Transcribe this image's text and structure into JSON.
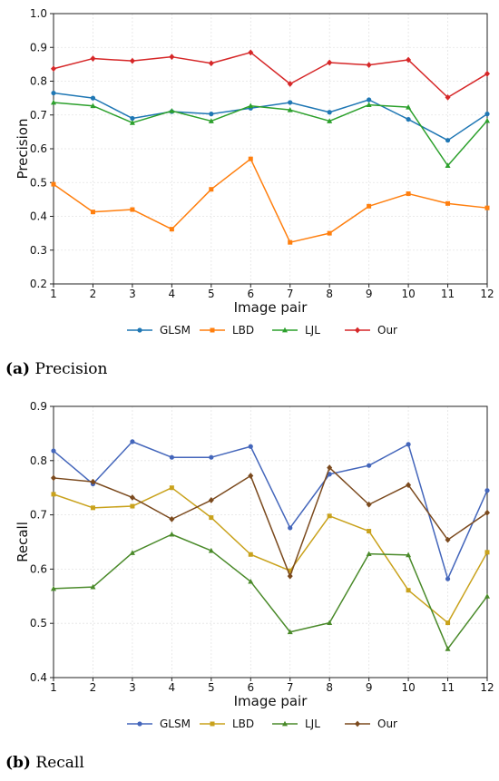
{
  "chart_data": [
    {
      "type": "line",
      "panel": "a",
      "caption_letter": "(a)",
      "caption_text": " Precision",
      "xlabel": "Image pair",
      "ylabel": "Precision",
      "x": [
        1,
        2,
        3,
        4,
        5,
        6,
        7,
        8,
        9,
        10,
        11,
        12
      ],
      "xlim": [
        1,
        12
      ],
      "ylim": [
        0.2,
        1.0
      ],
      "yticks": [
        0.2,
        0.3,
        0.4,
        0.5,
        0.6,
        0.7,
        0.8,
        0.9,
        1.0
      ],
      "ytick_labels": [
        "0.2",
        "0.3",
        "0.4",
        "0.5",
        "0.6",
        "0.7",
        "0.8",
        "0.9",
        "1.0"
      ],
      "grid": true,
      "legend_placement": "bottom-center",
      "series": [
        {
          "name": "GLSM",
          "color": "#1f77b4",
          "marker": "circle",
          "values": [
            0.765,
            0.75,
            0.69,
            0.71,
            0.703,
            0.72,
            0.737,
            0.708,
            0.745,
            0.687,
            0.625,
            0.703
          ]
        },
        {
          "name": "LBD",
          "color": "#ff7f0e",
          "marker": "square",
          "values": [
            0.495,
            0.413,
            0.42,
            0.362,
            0.48,
            0.57,
            0.323,
            0.35,
            0.43,
            0.467,
            0.438,
            0.425
          ]
        },
        {
          "name": "LJL",
          "color": "#2ca02c",
          "marker": "triangle",
          "values": [
            0.737,
            0.727,
            0.677,
            0.712,
            0.682,
            0.727,
            0.715,
            0.682,
            0.73,
            0.723,
            0.55,
            0.683
          ]
        },
        {
          "name": "Our",
          "color": "#d62728",
          "marker": "diamond",
          "values": [
            0.837,
            0.867,
            0.86,
            0.872,
            0.853,
            0.885,
            0.792,
            0.855,
            0.848,
            0.863,
            0.752,
            0.822
          ]
        }
      ]
    },
    {
      "type": "line",
      "panel": "b",
      "caption_letter": "(b)",
      "caption_text": " Recall",
      "xlabel": "Image pair",
      "ylabel": "Recall",
      "x": [
        1,
        2,
        3,
        4,
        5,
        6,
        7,
        8,
        9,
        10,
        11,
        12
      ],
      "xlim": [
        1,
        12
      ],
      "ylim": [
        0.4,
        0.9
      ],
      "yticks": [
        0.4,
        0.5,
        0.6,
        0.7,
        0.8,
        0.9
      ],
      "ytick_labels": [
        "0.4",
        "0.5",
        "0.6",
        "0.7",
        "0.8",
        "0.9"
      ],
      "grid": true,
      "legend_placement": "bottom-center",
      "series": [
        {
          "name": "GLSM",
          "color": "#4466bb",
          "marker": "circle",
          "values": [
            0.818,
            0.757,
            0.835,
            0.806,
            0.806,
            0.826,
            0.676,
            0.775,
            0.791,
            0.83,
            0.582,
            0.745
          ]
        },
        {
          "name": "LBD",
          "color": "#c9a21c",
          "marker": "square",
          "values": [
            0.738,
            0.713,
            0.716,
            0.75,
            0.695,
            0.627,
            0.597,
            0.698,
            0.67,
            0.561,
            0.501,
            0.631
          ]
        },
        {
          "name": "LJL",
          "color": "#4a8a2a",
          "marker": "triangle",
          "values": [
            0.564,
            0.567,
            0.63,
            0.664,
            0.634,
            0.577,
            0.484,
            0.501,
            0.628,
            0.626,
            0.453,
            0.55
          ]
        },
        {
          "name": "Our",
          "color": "#7b4a1e",
          "marker": "diamond",
          "values": [
            0.768,
            0.761,
            0.732,
            0.692,
            0.727,
            0.772,
            0.587,
            0.787,
            0.719,
            0.755,
            0.654,
            0.704
          ]
        }
      ]
    }
  ]
}
